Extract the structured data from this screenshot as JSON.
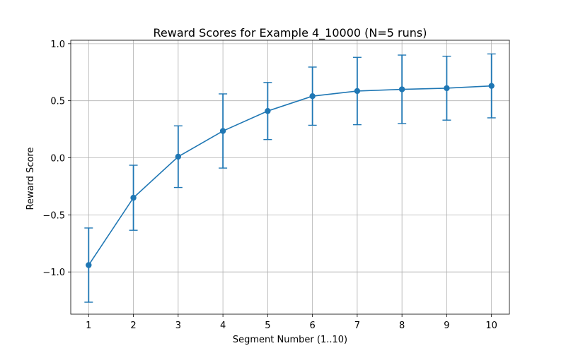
{
  "chart_data": {
    "type": "line",
    "title": "Reward Scores for Example 4_10000 (N=5 runs)",
    "xlabel": "Segment Number (1..10)",
    "ylabel": "Reward Score",
    "x": [
      1,
      2,
      3,
      4,
      5,
      6,
      7,
      8,
      9,
      10
    ],
    "series": [
      {
        "values": [
          -0.94,
          -0.35,
          0.01,
          0.235,
          0.41,
          0.54,
          0.585,
          0.6,
          0.61,
          0.63
        ],
        "error": [
          0.325,
          0.285,
          0.27,
          0.325,
          0.25,
          0.255,
          0.295,
          0.3,
          0.28,
          0.28
        ]
      }
    ],
    "xlim": [
      0.6,
      10.4
    ],
    "ylim": [
      -1.37,
      1.03
    ],
    "xticks": [
      1,
      2,
      3,
      4,
      5,
      6,
      7,
      8,
      9,
      10
    ],
    "yticks": [
      -1.0,
      -0.5,
      0.0,
      0.5,
      1.0
    ],
    "ytick_labels": [
      "−1.0",
      "−0.5",
      "0.0",
      "0.5",
      "1.0"
    ],
    "grid": true,
    "color": "#1f77b4",
    "marker": "circle",
    "error_bars": true
  }
}
